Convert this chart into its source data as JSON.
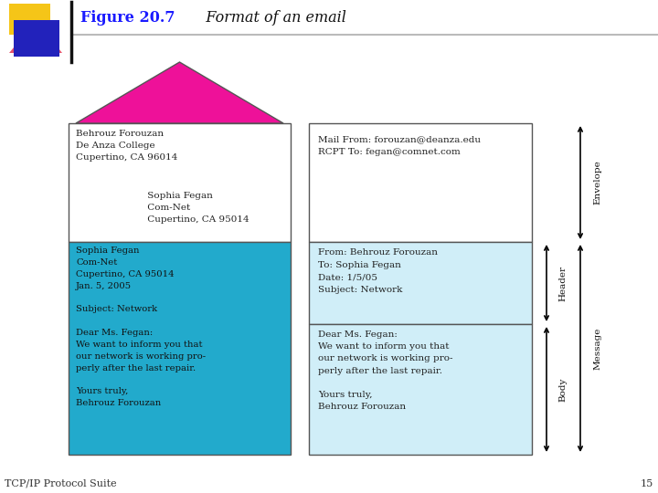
{
  "title_bold": "Figure 20.7",
  "title_italic": "   Format of an email",
  "title_color": "#1a1aff",
  "bg_color": "#ffffff",
  "roof_color": "#ee1199",
  "letter_bg": "#22aacc",
  "right_box_bg": "#d0eef8",
  "box_border": "#555555",
  "sender_text": "Behrouz Forouzan\nDe Anza College\nCupertino, CA 96014",
  "recipient_text": "     Sophia Fegan\n     Com-Net\n     Cupertino, CA 95014",
  "left_letter_text": "Sophia Fegan\nCom-Net\nCupertino, CA 95014\nJan. 5, 2005\n\nSubject: Network\n\nDear Ms. Fegan:\nWe want to inform you that\nour network is working pro-\nperly after the last repair.\n\nYours truly,\nBehrouz Forouzan",
  "envelope_right_text": "Mail From: forouzan@deanza.edu\nRCPT To: fegan@comnet.com",
  "header_right_text": "From: Behrouz Forouzan\nTo: Sophia Fegan\nDate: 1/5/05\nSubject: Network",
  "body_right_text": "Dear Ms. Fegan:\nWe want to inform you that\nour network is working pro-\nperly after the last repair.\n\nYours truly,\nBehrouz Forouzan",
  "footer_text": "TCP/IP Protocol Suite",
  "page_num": "15"
}
